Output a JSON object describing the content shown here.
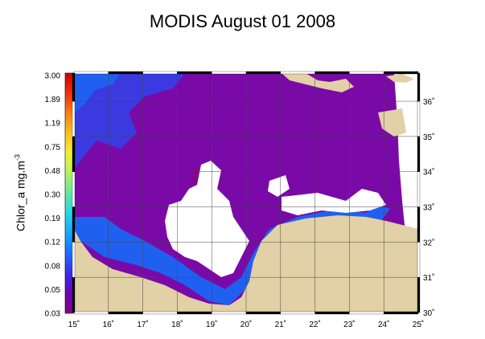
{
  "title": "MODIS August 01 2008",
  "colorbar": {
    "label_main": "Chlor_a  mg.m",
    "label_exp": "-3",
    "ticks": [
      "3.00",
      "1.89",
      "1.19",
      "0.75",
      "0.48",
      "0.30",
      "0.19",
      "0.12",
      "0.08",
      "0.05",
      "0.03"
    ],
    "colors": [
      "#8a008a",
      "#7000b8",
      "#3a2ce8",
      "#1e6cff",
      "#10a8ff",
      "#20d8e8",
      "#60e8a0",
      "#b8f060",
      "#f0f030",
      "#f8c020",
      "#f88010",
      "#f03010",
      "#d00000"
    ]
  },
  "map": {
    "lon_ticks": [
      "15˚",
      "16˚",
      "17˚",
      "18˚",
      "19˚",
      "20˚",
      "21˚",
      "22˚",
      "23˚",
      "24˚",
      "25˚"
    ],
    "lat_ticks": [
      "30˚",
      "31˚",
      "32˚",
      "33˚",
      "34˚",
      "35˚",
      "36˚"
    ],
    "lon_range": [
      15,
      25
    ],
    "lat_range": [
      30,
      36.8
    ],
    "colors": {
      "sea": "#7a0aa8",
      "sea_coastal": "#3a3ae0",
      "sea_shelf": "#2060f0",
      "land": "#e2d0a6",
      "cloud": "#ffffff",
      "grid": "#444444"
    }
  }
}
